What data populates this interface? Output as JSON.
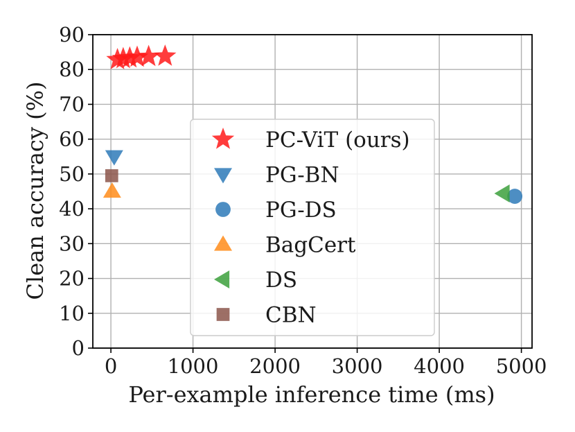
{
  "chart_data": {
    "type": "scatter",
    "xlabel": "Per-example inference time (ms)",
    "ylabel": "Clean accuracy (%)",
    "xlim": [
      -220,
      5130
    ],
    "ylim": [
      0,
      90
    ],
    "xticks": [
      0,
      1000,
      2000,
      3000,
      4000,
      5000
    ],
    "yticks": [
      0,
      10,
      20,
      30,
      40,
      50,
      60,
      70,
      80,
      90
    ],
    "grid": true,
    "legend_position": "center",
    "series": [
      {
        "name": "PC-ViT (ours)",
        "marker": "star",
        "color": "#ff1a1a",
        "points": [
          [
            80,
            82.8
          ],
          [
            150,
            83.1
          ],
          [
            230,
            83.3
          ],
          [
            320,
            83.5
          ],
          [
            460,
            83.7
          ],
          [
            660,
            83.8
          ]
        ]
      },
      {
        "name": "PG-BN",
        "marker": "triangle-down",
        "color": "#2e7ab8",
        "points": [
          [
            40,
            55.0
          ]
        ]
      },
      {
        "name": "PG-DS",
        "marker": "circle",
        "color": "#2e7ab8",
        "points": [
          [
            4920,
            43.6
          ]
        ]
      },
      {
        "name": "BagCert",
        "marker": "triangle-up",
        "color": "#ff8c1a",
        "points": [
          [
            15,
            45.0
          ]
        ]
      },
      {
        "name": "DS",
        "marker": "triangle-left",
        "color": "#3ca03c",
        "points": [
          [
            4780,
            44.4
          ]
        ]
      },
      {
        "name": "CBN",
        "marker": "square",
        "color": "#8c564b",
        "points": [
          [
            10,
            49.5
          ]
        ]
      }
    ]
  }
}
